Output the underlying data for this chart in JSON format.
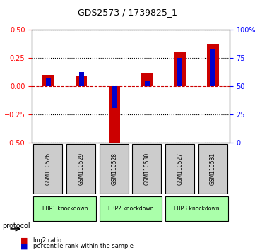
{
  "title": "GDS2573 / 1739825_1",
  "samples": [
    "GSM110526",
    "GSM110529",
    "GSM110528",
    "GSM110530",
    "GSM110527",
    "GSM110531"
  ],
  "log2_ratio": [
    0.1,
    0.09,
    -0.53,
    0.12,
    0.3,
    0.38
  ],
  "percentile_rank": [
    57,
    63,
    31,
    55,
    75,
    83
  ],
  "protocols": [
    {
      "label": "FBP1 knockdown",
      "samples": [
        0,
        1
      ],
      "color": "#aaffaa"
    },
    {
      "label": "FBP2 knockdown",
      "samples": [
        2,
        3
      ],
      "color": "#aaffaa"
    },
    {
      "label": "FBP3 knockdown",
      "samples": [
        4,
        5
      ],
      "color": "#aaffaa"
    }
  ],
  "ylim_left": [
    -0.5,
    0.5
  ],
  "ylim_right": [
    0,
    100
  ],
  "yticks_left": [
    -0.5,
    -0.25,
    0,
    0.25,
    0.5
  ],
  "yticks_right": [
    0,
    25,
    50,
    75,
    100
  ],
  "bar_color_red": "#cc0000",
  "bar_color_blue": "#0000cc",
  "bar_width": 0.35,
  "percentile_bar_width": 0.15,
  "legend_red": "log2 ratio",
  "legend_blue": "percentile rank within the sample",
  "protocol_label": "protocol",
  "background_color": "#ffffff",
  "plot_bg": "#ffffff",
  "grid_color": "#000000",
  "dashed_zero_color": "#cc0000"
}
